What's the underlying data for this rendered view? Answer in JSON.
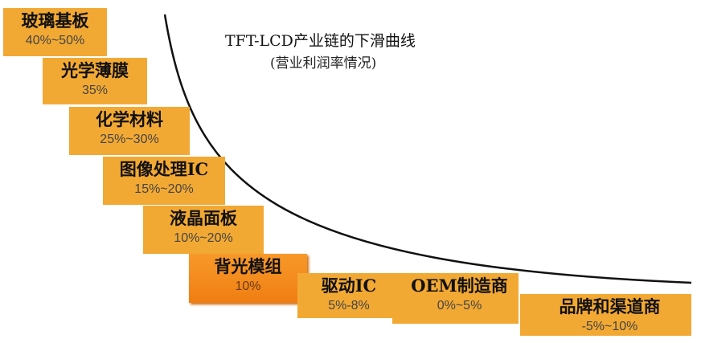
{
  "title": "TFT-LCD产业链的下滑曲线",
  "subtitle": "(营业利润率情况)",
  "nodes": [
    {
      "label": "玻璃基板",
      "margin": "40%~50%"
    },
    {
      "label": "光学薄膜",
      "margin": "35%"
    },
    {
      "label": "化学材料",
      "margin": "25%~30%"
    },
    {
      "label": "图像处理IC",
      "margin": "15%~20%"
    },
    {
      "label": "液晶面板",
      "margin": "10%~20%"
    },
    {
      "label": "背光模组",
      "margin": "10%"
    },
    {
      "label": "驱动IC",
      "margin": "5%-8%"
    },
    {
      "label": "OEM制造商",
      "margin": "0%~5%"
    },
    {
      "label": "品牌和渠道商",
      "margin": "-5%~10%"
    }
  ]
}
